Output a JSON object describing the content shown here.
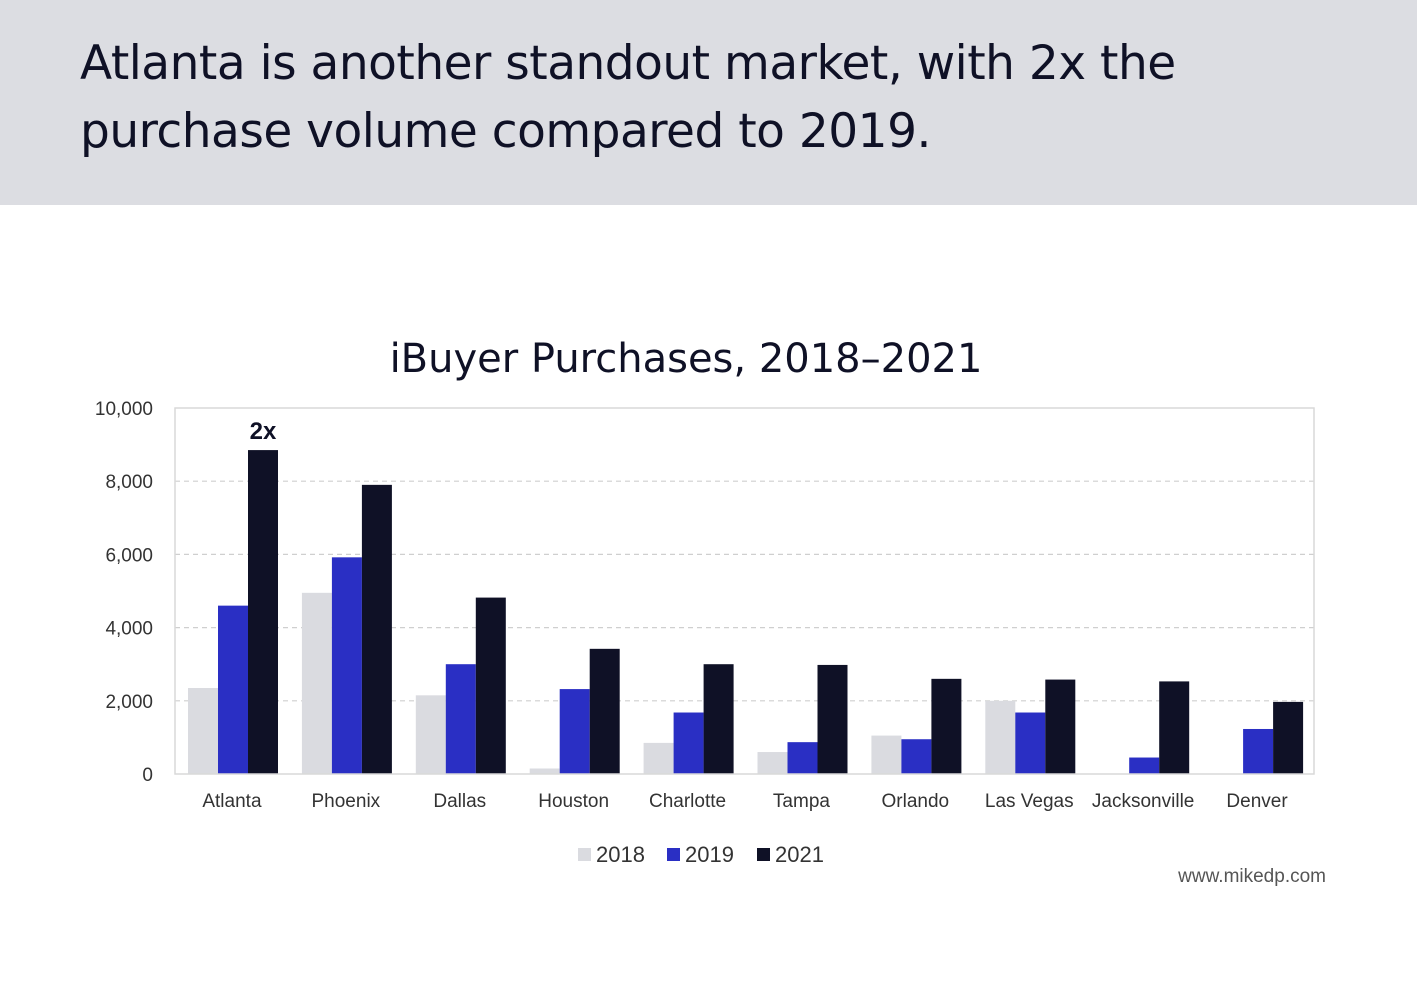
{
  "header": {
    "headline": "Atlanta is another standout market, with 2x the purchase volume compared to 2019.",
    "background": "#dcdde2"
  },
  "source": "www.mikedp.com",
  "chart_data": {
    "type": "bar",
    "title": "iBuyer Purchases, 2018–2021",
    "xlabel": "",
    "ylabel": "",
    "ylim": [
      0,
      10000
    ],
    "yticks": [
      0,
      2000,
      4000,
      6000,
      8000,
      10000
    ],
    "ytick_labels": [
      "0",
      "2,000",
      "4,000",
      "6,000",
      "8,000",
      "10,000"
    ],
    "grid": true,
    "legend_position": "bottom",
    "categories": [
      "Atlanta",
      "Phoenix",
      "Dallas",
      "Houston",
      "Charlotte",
      "Tampa",
      "Orlando",
      "Las Vegas",
      "Jacksonville",
      "Denver"
    ],
    "series": [
      {
        "name": "2018",
        "color": "#dadbe0",
        "values": [
          2350,
          4950,
          2150,
          150,
          850,
          600,
          1050,
          2000,
          0,
          0
        ]
      },
      {
        "name": "2019",
        "color": "#2a2fc4",
        "values": [
          4600,
          5920,
          3000,
          2320,
          1680,
          870,
          950,
          1680,
          450,
          1230
        ]
      },
      {
        "name": "2021",
        "color": "#0f1126",
        "values": [
          8850,
          7900,
          4820,
          3420,
          3000,
          2980,
          2600,
          2580,
          2530,
          1970
        ]
      }
    ],
    "annotations": [
      {
        "text": "2x",
        "category": "Atlanta",
        "series": "2021"
      }
    ]
  }
}
